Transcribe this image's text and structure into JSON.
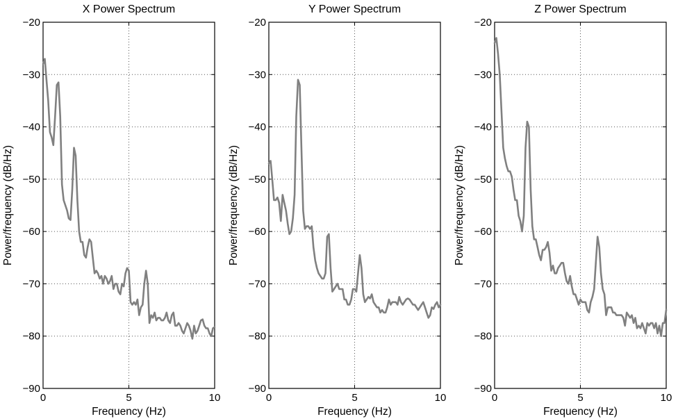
{
  "chart_data": [
    {
      "type": "line",
      "title": "X Power Spectrum",
      "xlabel": "Frequency (Hz)",
      "ylabel": "Power/frequency (dB/Hz)",
      "xlim": [
        0,
        10
      ],
      "ylim": [
        -90,
        -20
      ],
      "xticks": [
        "0",
        "5",
        "10"
      ],
      "yticks": [
        "−20",
        "−30",
        "−40",
        "−50",
        "−60",
        "−70",
        "−80",
        "−90"
      ],
      "grid": true,
      "line_color": "#808080",
      "series": [
        {
          "x": [
            0,
            0.1,
            0.2,
            0.3,
            0.4,
            0.5,
            0.6,
            0.7,
            0.8,
            0.9,
            1.0,
            1.1,
            1.2,
            1.3,
            1.4,
            1.5,
            1.6,
            1.7,
            1.8,
            1.9,
            2.0,
            2.1,
            2.2,
            2.3,
            2.4,
            2.5,
            2.6,
            2.7,
            2.8,
            2.9,
            3.0,
            3.1,
            3.2,
            3.3,
            3.4,
            3.5,
            3.6,
            3.7,
            3.8,
            3.9,
            4.0,
            4.1,
            4.2,
            4.3,
            4.4,
            4.5,
            4.6,
            4.7,
            4.8,
            4.9,
            5.0,
            5.1,
            5.2,
            5.3,
            5.4,
            5.5,
            5.6,
            5.7,
            5.8,
            5.9,
            6.0,
            6.1,
            6.2,
            6.3,
            6.4,
            6.5,
            6.6,
            6.7,
            6.8,
            6.9,
            7.0,
            7.1,
            7.2,
            7.3,
            7.4,
            7.5,
            7.6,
            7.7,
            7.8,
            7.9,
            8.0,
            8.1,
            8.2,
            8.3,
            8.4,
            8.5,
            8.6,
            8.7,
            8.8,
            8.9,
            9.0,
            9.1,
            9.2,
            9.3,
            9.4,
            9.5,
            9.6,
            9.7,
            9.8,
            9.9,
            10.0
          ],
          "y": [
            -28,
            -27,
            -31,
            -35,
            -41,
            -42,
            -43.5,
            -38,
            -32,
            -31.5,
            -38,
            -51,
            -54,
            -55,
            -56,
            -57.5,
            -57.8,
            -52,
            -44,
            -45.5,
            -54,
            -60,
            -62,
            -62,
            -64.5,
            -65,
            -63,
            -61.5,
            -62,
            -65,
            -68,
            -67.5,
            -68,
            -69,
            -68.5,
            -70,
            -68.5,
            -69,
            -70,
            -69.5,
            -68.5,
            -71,
            -70,
            -70,
            -71.5,
            -72,
            -70,
            -70.5,
            -68,
            -67,
            -67.5,
            -73.5,
            -74,
            -73.5,
            -74,
            -73,
            -76,
            -74.5,
            -74,
            -70,
            -67.5,
            -70,
            -77.5,
            -76,
            -76.5,
            -75.5,
            -77,
            -76.5,
            -76.5,
            -77,
            -77,
            -76.5,
            -75.5,
            -77,
            -77.5,
            -76,
            -75.5,
            -78,
            -78,
            -77.5,
            -78,
            -79,
            -79.5,
            -78.5,
            -77.5,
            -78,
            -79,
            -80.5,
            -78,
            -79.5,
            -79,
            -78,
            -77,
            -76.8,
            -78,
            -78.5,
            -78.5,
            -79.5,
            -80,
            -78.5,
            -78.3
          ]
        }
      ]
    },
    {
      "type": "line",
      "title": "Y Power Spectrum",
      "xlabel": "Frequency (Hz)",
      "ylabel": "Power/frequency (dB/Hz)",
      "xlim": [
        0,
        10
      ],
      "ylim": [
        -90,
        -20
      ],
      "xticks": [
        "0",
        "5",
        "10"
      ],
      "yticks": [
        "−20",
        "−30",
        "−40",
        "−50",
        "−60",
        "−70",
        "−80",
        "−90"
      ],
      "grid": true,
      "line_color": "#808080",
      "series": [
        {
          "x": [
            0,
            0.1,
            0.2,
            0.3,
            0.4,
            0.5,
            0.6,
            0.7,
            0.8,
            0.9,
            1.0,
            1.1,
            1.2,
            1.3,
            1.4,
            1.5,
            1.6,
            1.7,
            1.8,
            1.9,
            2.0,
            2.1,
            2.2,
            2.3,
            2.4,
            2.5,
            2.6,
            2.7,
            2.8,
            2.9,
            3.0,
            3.1,
            3.2,
            3.3,
            3.4,
            3.5,
            3.6,
            3.7,
            3.8,
            3.9,
            4.0,
            4.1,
            4.2,
            4.3,
            4.4,
            4.5,
            4.6,
            4.7,
            4.8,
            4.9,
            5.0,
            5.1,
            5.2,
            5.3,
            5.4,
            5.5,
            5.6,
            5.7,
            5.8,
            5.9,
            6.0,
            6.1,
            6.2,
            6.3,
            6.4,
            6.5,
            6.6,
            6.7,
            6.8,
            6.9,
            7.0,
            7.1,
            7.2,
            7.3,
            7.4,
            7.5,
            7.6,
            7.7,
            7.8,
            7.9,
            8.0,
            8.1,
            8.2,
            8.3,
            8.4,
            8.5,
            8.6,
            8.7,
            8.8,
            8.9,
            9.0,
            9.1,
            9.2,
            9.3,
            9.4,
            9.5,
            9.6,
            9.7,
            9.8,
            9.9,
            10.0
          ],
          "y": [
            -47,
            -46.5,
            -50,
            -54,
            -54,
            -53.5,
            -54.5,
            -58,
            -53,
            -54.5,
            -56,
            -58.5,
            -60.5,
            -60,
            -57.5,
            -53,
            -38,
            -31,
            -32,
            -44,
            -56,
            -59.5,
            -59,
            -59,
            -59.5,
            -59,
            -63,
            -65.5,
            -67,
            -68,
            -68.5,
            -69,
            -69,
            -68,
            -61,
            -60.5,
            -67,
            -71.5,
            -71,
            -70.5,
            -70,
            -71,
            -71,
            -71,
            -73,
            -73,
            -74,
            -74,
            -73,
            -71,
            -71,
            -71.5,
            -68,
            -64.5,
            -67,
            -72,
            -73.5,
            -73,
            -72.5,
            -72.8,
            -72,
            -73.5,
            -74,
            -74.5,
            -74.5,
            -75.5,
            -75,
            -75.5,
            -75.5,
            -74.5,
            -73,
            -74,
            -73.5,
            -73.5,
            -73.5,
            -74,
            -72.5,
            -73.5,
            -74,
            -73.5,
            -73,
            -72.8,
            -73,
            -73.5,
            -74,
            -74,
            -74.5,
            -75,
            -74.5,
            -74,
            -73.5,
            -74.5,
            -75.5,
            -76.5,
            -76,
            -74.5,
            -74.8,
            -74,
            -73.5,
            -74.5,
            -74
          ]
        }
      ]
    },
    {
      "type": "line",
      "title": "Z Power Spectrum",
      "xlabel": "Frequency (Hz)",
      "ylabel": "Power/frequency (dB/Hz)",
      "xlim": [
        0,
        10
      ],
      "ylim": [
        -90,
        -20
      ],
      "xticks": [
        "0",
        "5",
        "10"
      ],
      "yticks": [
        "−20",
        "−30",
        "−40",
        "−50",
        "−60",
        "−70",
        "−80",
        "−90"
      ],
      "grid": true,
      "line_color": "#808080",
      "series": [
        {
          "x": [
            0,
            0.1,
            0.2,
            0.3,
            0.4,
            0.5,
            0.6,
            0.7,
            0.8,
            0.9,
            1.0,
            1.1,
            1.2,
            1.3,
            1.4,
            1.5,
            1.6,
            1.7,
            1.8,
            1.9,
            2.0,
            2.1,
            2.2,
            2.3,
            2.4,
            2.5,
            2.6,
            2.7,
            2.8,
            2.9,
            3.0,
            3.1,
            3.2,
            3.3,
            3.4,
            3.5,
            3.6,
            3.7,
            3.8,
            3.9,
            4.0,
            4.1,
            4.2,
            4.3,
            4.4,
            4.5,
            4.6,
            4.7,
            4.8,
            4.9,
            5.0,
            5.1,
            5.2,
            5.3,
            5.4,
            5.5,
            5.6,
            5.7,
            5.8,
            5.9,
            6.0,
            6.1,
            6.2,
            6.3,
            6.4,
            6.5,
            6.6,
            6.7,
            6.8,
            6.9,
            7.0,
            7.1,
            7.2,
            7.3,
            7.4,
            7.5,
            7.6,
            7.7,
            7.8,
            7.9,
            8.0,
            8.1,
            8.2,
            8.3,
            8.4,
            8.5,
            8.6,
            8.7,
            8.8,
            8.9,
            9.0,
            9.1,
            9.2,
            9.3,
            9.4,
            9.5,
            9.6,
            9.7,
            9.8,
            9.9,
            10.0
          ],
          "y": [
            -24,
            -23,
            -26,
            -30,
            -37,
            -44,
            -46,
            -47.5,
            -48.5,
            -48.5,
            -49.5,
            -52,
            -54,
            -54,
            -57,
            -58,
            -60,
            -57,
            -44,
            -39,
            -40,
            -52,
            -59,
            -61.5,
            -61.5,
            -63,
            -64.5,
            -65.5,
            -63.5,
            -63.5,
            -63,
            -62,
            -64,
            -67.5,
            -66.5,
            -68,
            -68,
            -67,
            -66.5,
            -66,
            -66,
            -68,
            -69.5,
            -70,
            -68.5,
            -70.5,
            -72,
            -72,
            -73,
            -74,
            -73,
            -73.5,
            -73.5,
            -73.5,
            -75,
            -75.5,
            -73.5,
            -72.5,
            -71,
            -66,
            -61,
            -63,
            -68,
            -71,
            -72,
            -76,
            -74.5,
            -74.5,
            -74.5,
            -75.5,
            -75.5,
            -76,
            -76,
            -76,
            -76,
            -76.5,
            -78,
            -75.5,
            -76,
            -76.5,
            -76,
            -77.5,
            -76.5,
            -78.5,
            -78,
            -78.5,
            -77.5,
            -78.5,
            -79.5,
            -77.5,
            -78,
            -77.5,
            -77.5,
            -78.5,
            -77.5,
            -79.5,
            -78,
            -80,
            -77.5,
            -77.5,
            -75
          ]
        }
      ]
    }
  ]
}
